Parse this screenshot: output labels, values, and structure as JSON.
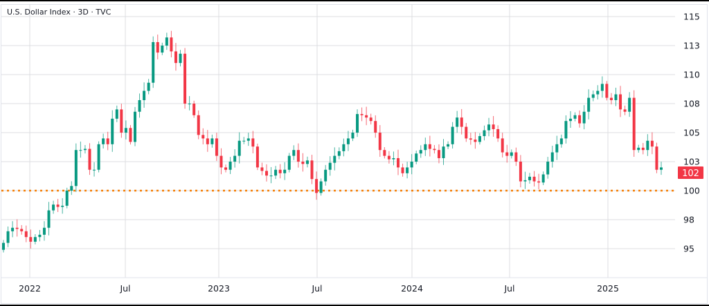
{
  "chart_data": {
    "type": "candlestick",
    "title": "U.S. Dollar Index · 3D · TVC",
    "x_tick_labels": [
      "2022",
      "Jul",
      "2023",
      "Jul",
      "2024",
      "Jul",
      "2025"
    ],
    "y_tick_labels": [
      "115",
      "113",
      "110",
      "108",
      "105",
      "103",
      "100",
      "98",
      "95"
    ],
    "y_tick_values": [
      115,
      112.5,
      110,
      107.5,
      105,
      102.5,
      100,
      97.5,
      95
    ],
    "ylim": [
      92.8,
      116.5
    ],
    "grid": true,
    "horizontal_line": {
      "value": 100,
      "style": "dotted",
      "color": "#f57c00"
    },
    "last_price": {
      "label": "102",
      "value": 102.0,
      "color": "#f23645"
    },
    "colors": {
      "up": "#089981",
      "down": "#f23645"
    },
    "closes": [
      95.5,
      96.5,
      96.8,
      96.7,
      96.5,
      96.0,
      95.6,
      96.0,
      96.2,
      96.8,
      98.3,
      98.8,
      98.6,
      98.7,
      100.0,
      100.4,
      103.5,
      103.5,
      103.6,
      101.8,
      101.8,
      104.0,
      104.5,
      104.0,
      106.2,
      107.0,
      105.0,
      105.4,
      104.2,
      106.8,
      107.8,
      108.6,
      109.3,
      112.8,
      111.9,
      112.5,
      113.2,
      112.0,
      111.0,
      111.8,
      107.5,
      107.5,
      106.5,
      104.8,
      104.5,
      104.0,
      104.5,
      103.0,
      102.0,
      101.8,
      102.5,
      103.0,
      104.3,
      104.3,
      104.5,
      103.8,
      102.0,
      101.7,
      101.3,
      101.3,
      101.8,
      101.5,
      101.8,
      103.0,
      103.5,
      102.5,
      102.3,
      102.6,
      101.0,
      99.8,
      100.8,
      101.8,
      102.4,
      103.0,
      103.4,
      104.0,
      104.5,
      105.0,
      106.6,
      106.5,
      106.3,
      106.0,
      105.0,
      103.5,
      103.0,
      102.7,
      102.8,
      102.0,
      101.5,
      102.0,
      102.5,
      103.2,
      103.5,
      104.0,
      103.6,
      103.5,
      102.8,
      103.8,
      104.0,
      105.5,
      106.3,
      105.5,
      104.5,
      104.4,
      104.2,
      104.7,
      105.2,
      105.7,
      105.3,
      104.5,
      103.3,
      103.0,
      103.3,
      102.5,
      100.8,
      100.9,
      101.2,
      100.8,
      100.7,
      101.4,
      102.5,
      103.3,
      104.0,
      104.5,
      106.0,
      106.2,
      106.5,
      105.8,
      106.8,
      108.0,
      108.3,
      108.6,
      109.2,
      108.0,
      107.8,
      108.3,
      107.0,
      106.8,
      108.0,
      103.5,
      103.7,
      103.5,
      104.3,
      103.8,
      101.8,
      102.0
    ]
  }
}
